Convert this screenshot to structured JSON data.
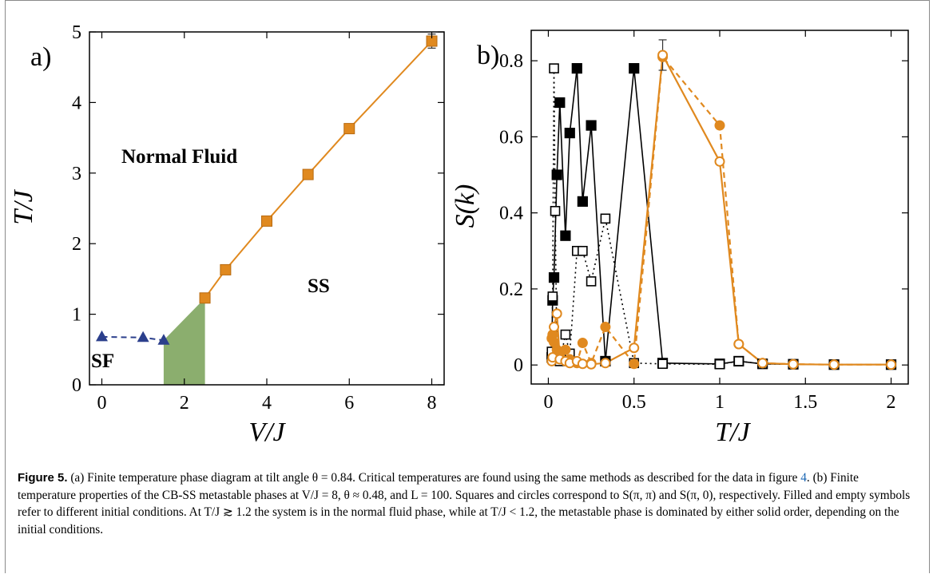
{
  "chart_data": [
    {
      "type": "line",
      "panel_label": "a)",
      "xlabel": "V/J",
      "ylabel": "T/J",
      "xlim": [
        -0.3,
        8.3
      ],
      "ylim": [
        0,
        5
      ],
      "x_ticks": [
        0,
        2,
        4,
        6,
        8
      ],
      "y_ticks": [
        0,
        1,
        2,
        3,
        4,
        5
      ],
      "grid": false,
      "series": [
        {
          "color": "#E0891F",
          "marker": "square",
          "line": "solid",
          "x": [
            2.5,
            3,
            4,
            5,
            6,
            8
          ],
          "y": [
            1.23,
            1.63,
            2.32,
            2.98,
            3.63,
            4.87
          ],
          "errors": [
            0,
            0,
            0,
            0,
            0.06,
            0.1
          ]
        },
        {
          "color": "#2B3F8C",
          "marker": "triangle",
          "line": "dashed",
          "x": [
            0,
            1,
            1.5
          ],
          "y": [
            0.68,
            0.67,
            0.63
          ]
        }
      ],
      "shaded_region": {
        "color": "#6E9A4A",
        "points": [
          [
            1.5,
            0
          ],
          [
            2.5,
            0
          ],
          [
            2.5,
            1.23
          ],
          [
            1.5,
            0.63
          ]
        ]
      },
      "annotations": [
        "Normal Fluid",
        "SS",
        "SF"
      ]
    },
    {
      "type": "line",
      "panel_label": "b)",
      "xlabel": "T/J",
      "ylabel": "S(k)",
      "xlim": [
        -0.1,
        2.1
      ],
      "ylim": [
        -0.05,
        0.88
      ],
      "x_ticks": [
        0,
        0.5,
        1,
        1.5,
        2
      ],
      "x_tick_labels": [
        "0",
        "0.5",
        "1",
        "1.5",
        "2"
      ],
      "y_ticks": [
        0,
        0.2,
        0.4,
        0.6,
        0.8
      ],
      "y_tick_labels": [
        "0",
        "0.2",
        "0.4",
        "0.6",
        "0.8"
      ],
      "grid": false,
      "series": [
        {
          "color": "#000000",
          "marker": "square-filled",
          "line": "solid",
          "points": [
            [
              0.02,
              0.02
            ],
            [
              0.025,
              0.17
            ],
            [
              0.033,
              0.23
            ],
            [
              0.05,
              0.5
            ],
            [
              0.067,
              0.69
            ],
            [
              0.1,
              0.34
            ],
            [
              0.125,
              0.61
            ],
            [
              0.167,
              0.78
            ],
            [
              0.2,
              0.43
            ],
            [
              0.25,
              0.63
            ],
            [
              0.333,
              0.01
            ],
            [
              0.5,
              0.78
            ],
            [
              0.667,
              0.005
            ],
            [
              1.0,
              0.003
            ],
            [
              1.111,
              0.01
            ],
            [
              1.25,
              0.003
            ],
            [
              1.429,
              0.002
            ],
            [
              1.667,
              0.001
            ],
            [
              2.0,
              0.001
            ]
          ]
        },
        {
          "color": "#000000",
          "marker": "square-open",
          "line": "dotted",
          "points": [
            [
              0.02,
              0.035
            ],
            [
              0.025,
              0.18
            ],
            [
              0.033,
              0.78
            ],
            [
              0.04,
              0.405
            ],
            [
              0.05,
              0.02
            ],
            [
              0.067,
              0.01
            ],
            [
              0.1,
              0.08
            ],
            [
              0.125,
              0.03
            ],
            [
              0.167,
              0.3
            ],
            [
              0.2,
              0.3
            ],
            [
              0.25,
              0.22
            ],
            [
              0.333,
              0.385
            ],
            [
              0.5,
              0.005
            ],
            [
              0.667,
              0.003
            ],
            [
              1.0,
              0.002
            ],
            [
              1.111,
              0.01
            ],
            [
              1.25,
              0.003
            ],
            [
              1.429,
              0.002
            ],
            [
              1.667,
              0.001
            ],
            [
              2.0,
              0.001
            ]
          ]
        },
        {
          "color": "#E0891F",
          "marker": "circle-filled",
          "line": "dashed",
          "points": [
            [
              0.02,
              0.07
            ],
            [
              0.025,
              0.08
            ],
            [
              0.033,
              0.06
            ],
            [
              0.05,
              0.04
            ],
            [
              0.067,
              0.03
            ],
            [
              0.1,
              0.04
            ],
            [
              0.125,
              0.015
            ],
            [
              0.167,
              0.005
            ],
            [
              0.2,
              0.058
            ],
            [
              0.25,
              0.005
            ],
            [
              0.333,
              0.1
            ],
            [
              0.5,
              0.003
            ],
            [
              0.667,
              0.81
            ],
            [
              1.0,
              0.63
            ],
            [
              1.111,
              0.055
            ],
            [
              1.25,
              0.005
            ],
            [
              1.429,
              0.002
            ],
            [
              1.667,
              0.001
            ],
            [
              2.0,
              0.001
            ]
          ]
        },
        {
          "color": "#E0891F",
          "marker": "circle-open",
          "line": "solid",
          "points": [
            [
              0.02,
              0.01
            ],
            [
              0.025,
              0.02
            ],
            [
              0.033,
              0.1
            ],
            [
              0.05,
              0.135
            ],
            [
              0.067,
              0.015
            ],
            [
              0.1,
              0.01
            ],
            [
              0.125,
              0.005
            ],
            [
              0.167,
              0.01
            ],
            [
              0.2,
              0.003
            ],
            [
              0.25,
              0.002
            ],
            [
              0.333,
              0.005
            ],
            [
              0.5,
              0.045
            ],
            [
              0.667,
              0.815
            ],
            [
              1.0,
              0.535
            ],
            [
              1.111,
              0.055
            ],
            [
              1.25,
              0.005
            ],
            [
              1.429,
              0.002
            ],
            [
              1.667,
              0.001
            ],
            [
              2.0,
              0.001
            ]
          ]
        }
      ],
      "error_bar": {
        "x": 0.667,
        "y": 0.815,
        "err": 0.04
      }
    }
  ],
  "caption": {
    "figure_label": "Figure 5.",
    "text_1": " (a) Finite temperature phase diagram at tilt angle θ = 0.84. Critical temperatures are found using the same methods as described for the data in figure ",
    "ref": "4",
    "text_2": ". (b) Finite temperature properties of the CB-SS metastable phases at V/J = 8, θ ≈ 0.48, and L = 100. Squares and circles correspond to S(π, π) and S(π, 0), respectively. Filled and empty symbols refer to different initial conditions. At T/J ≳ 1.2 the system is in the normal fluid phase, while at T/J < 1.2, the metastable phase is dominated by either solid order, depending on the initial conditions."
  }
}
